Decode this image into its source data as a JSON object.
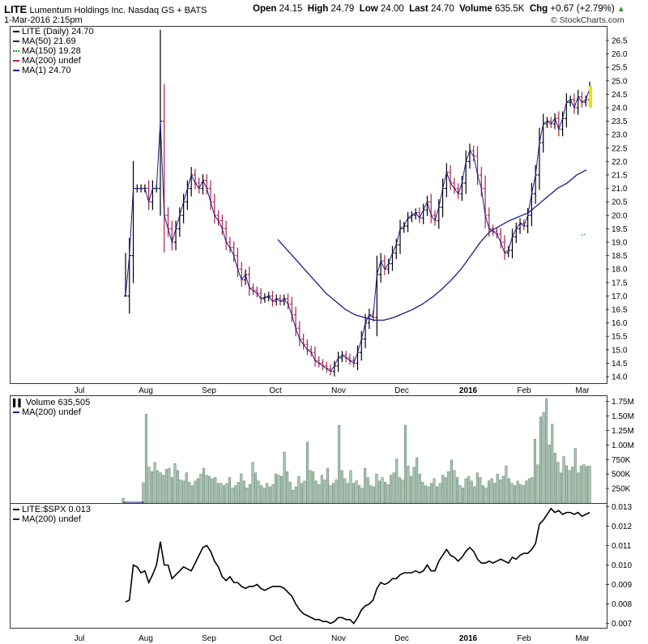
{
  "header": {
    "symbol": "LITE",
    "company": "Lumentum Holdings Inc.  Nasdaq GS + BATS",
    "datetime": "1-Mar-2016 2:15pm",
    "open_label": "Open",
    "open": "24.15",
    "high_label": "High",
    "high": "24.79",
    "low_label": "Low",
    "low": "24.00",
    "last_label": "Last",
    "last": "24.70",
    "volume_label": "Volume",
    "volume": "635.5K",
    "chg_label": "Chg",
    "chg": "+0.67 (+2.79%)",
    "chg_arrow": "▲",
    "brand": "© StockCharts.com"
  },
  "price_legend": [
    {
      "text": "LITE (Daily) 24.70",
      "icon": "candlestick-icon",
      "color": "#000000"
    },
    {
      "text": "MA(50) 21.69",
      "icon": "line-icon",
      "color": "#1a1a8c"
    },
    {
      "text": "MA(150) 19.28",
      "icon": "dotted-line-icon",
      "color": "#2a8a2a"
    },
    {
      "text": "MA(200) undef",
      "icon": "line-icon",
      "color": "#c0203a"
    },
    {
      "text": "MA(1) 24.70",
      "icon": "line-icon",
      "color": "#1a1a8c"
    }
  ],
  "volume_legend": [
    {
      "text": "Volume 635,505",
      "icon": "volume-bars-icon",
      "color": "#555555"
    },
    {
      "text": "MA(200) undef",
      "icon": "line-icon",
      "color": "#1a1a8c"
    }
  ],
  "ratio_legend": [
    {
      "text": "LITE:$SPX 0.013",
      "icon": "line-icon",
      "color": "#000000"
    },
    {
      "text": "MA(200) undef",
      "icon": "line-icon",
      "color": "#1a1a8c"
    }
  ],
  "colors": {
    "up": "#000000",
    "down": "#b0204a",
    "ma50": "#1a1a8c",
    "ma150": "#2a8a2a",
    "volume_fill": "#a9c4b4",
    "volume_stroke": "#5a7a66",
    "last_highlight": "#f0e000"
  },
  "chart_data": [
    {
      "type": "line",
      "title": "LITE (Daily)",
      "x_labels": [
        "Jul",
        "Aug",
        "Sep",
        "Oct",
        "Nov",
        "Dec",
        "2016",
        "Feb",
        "Mar"
      ],
      "y_ticks": [
        14.0,
        14.5,
        15.0,
        15.5,
        16.0,
        16.5,
        17.0,
        17.5,
        18.0,
        18.5,
        19.0,
        19.5,
        20.0,
        20.5,
        21.0,
        21.5,
        22.0,
        22.5,
        23.0,
        23.5,
        24.0,
        24.5,
        25.0,
        25.5,
        26.0,
        26.5
      ],
      "ylim": [
        13.85,
        26.95
      ],
      "series": [
        {
          "name": "LITE (Daily)",
          "values": [
            17.0,
            18.5,
            21.0,
            21.0,
            21.0,
            21.0,
            20.5,
            21.0,
            21.0,
            23.5,
            20.0,
            19.5,
            19.0,
            19.5,
            20.0,
            20.5,
            21.0,
            21.5,
            21.2,
            21.0,
            21.3,
            21.0,
            20.5,
            20.0,
            19.8,
            19.5,
            19.0,
            18.8,
            18.5,
            18.0,
            17.6,
            17.8,
            17.3,
            17.2,
            17.1,
            16.9,
            16.95,
            17.0,
            16.8,
            16.9,
            16.8,
            16.9,
            16.7,
            16.3,
            15.8,
            15.4,
            15.2,
            15.0,
            14.9,
            14.6,
            14.5,
            14.4,
            14.3,
            14.2,
            14.4,
            14.7,
            14.8,
            14.7,
            14.6,
            14.5,
            14.9,
            15.4,
            16.0,
            16.3,
            16.2,
            17.8,
            18.3,
            18.0,
            18.2,
            18.6,
            18.9,
            19.5,
            19.6,
            19.9,
            20.0,
            20.1,
            19.9,
            20.2,
            20.5,
            20.0,
            19.8,
            20.3,
            21.0,
            21.6,
            21.2,
            21.0,
            20.8,
            21.2,
            22.0,
            22.4,
            22.2,
            21.5,
            21.0,
            20.0,
            19.5,
            19.4,
            19.3,
            19.0,
            18.6,
            18.7,
            19.2,
            19.5,
            19.7,
            19.6,
            20.0,
            20.8,
            21.5,
            22.7,
            23.4,
            23.5,
            23.4,
            23.6,
            23.2,
            23.6,
            24.2,
            24.3,
            24.0,
            24.4,
            24.2,
            24.3,
            24.7
          ]
        },
        {
          "name": "MA(50)",
          "values": [
            19.1,
            18.7,
            18.3,
            17.9,
            17.5,
            17.1,
            16.8,
            16.5,
            16.3,
            16.2,
            16.1,
            16.1,
            16.2,
            16.35,
            16.5,
            16.7,
            16.95,
            17.25,
            17.6,
            18.0,
            18.5,
            19.0,
            19.4,
            19.6,
            19.8,
            19.95,
            20.1,
            20.4,
            20.7,
            21.0,
            21.2,
            21.5,
            21.69
          ]
        },
        {
          "name": "MA(150)",
          "values": [
            19.28
          ]
        }
      ]
    },
    {
      "type": "bar",
      "title": "Volume",
      "ylim": [
        0,
        1800000
      ],
      "y_ticks": [
        "250K",
        "500K",
        "750K",
        "1.00M",
        "1.25M",
        "1.50M",
        "1.75M"
      ],
      "values": [
        80000,
        0,
        0,
        0,
        0,
        0,
        0,
        350000,
        1530000,
        620000,
        540000,
        700000,
        560000,
        520000,
        480000,
        580000,
        600000,
        440000,
        680000,
        560000,
        400000,
        380000,
        520000,
        360000,
        300000,
        380000,
        420000,
        500000,
        600000,
        480000,
        460000,
        420000,
        440000,
        340000,
        340000,
        300000,
        340000,
        440000,
        260000,
        300000,
        360000,
        500000,
        380000,
        260000,
        320000,
        700000,
        520000,
        380000,
        300000,
        260000,
        340000,
        280000,
        320000,
        500000,
        480000,
        460000,
        880000,
        540000,
        360000,
        220000,
        280000,
        460000,
        340000,
        380000,
        1050000,
        560000,
        540000,
        380000,
        320000,
        480000,
        400000,
        600000,
        300000,
        340000,
        400000,
        1340000,
        560000,
        420000,
        340000,
        560000,
        340000,
        380000,
        300000,
        260000,
        600000,
        440000,
        300000,
        280000,
        500000,
        380000,
        440000,
        360000,
        320000,
        480000,
        520000,
        760000,
        440000,
        400000,
        1340000,
        640000,
        460000,
        620000,
        780000,
        500000,
        360000,
        300000,
        280000,
        340000,
        420000,
        280000,
        340000,
        480000,
        440000,
        540000,
        740000,
        560000,
        440000,
        300000,
        260000,
        420000,
        460000,
        380000,
        280000,
        520000,
        440000,
        300000,
        260000,
        380000,
        420000,
        340000,
        500000,
        400000,
        460000,
        640000,
        420000,
        340000,
        300000,
        380000,
        320000,
        300000,
        380000,
        420000,
        440000,
        1100000,
        660000,
        1480000,
        1560000,
        1800000,
        1000000,
        1360000,
        860000,
        700000,
        520000,
        800000,
        640000,
        560000,
        620000,
        940000,
        520000,
        640000,
        660000,
        630000,
        640000
      ]
    },
    {
      "type": "line",
      "title": "LITE:$SPX",
      "y_ticks": [
        "0.007",
        "0.008",
        "0.009",
        "0.010",
        "0.011",
        "0.012",
        "0.013"
      ],
      "ylim": [
        0.0069,
        0.0131
      ],
      "series": [
        {
          "name": "LITE:$SPX",
          "values": [
            0.0081,
            0.0082,
            0.01,
            0.0099,
            0.0096,
            0.0097,
            0.0091,
            0.0095,
            0.01,
            0.0112,
            0.01,
            0.01,
            0.0093,
            0.0095,
            0.0097,
            0.0099,
            0.0098,
            0.0097,
            0.0101,
            0.0105,
            0.0109,
            0.011,
            0.0107,
            0.0102,
            0.0099,
            0.0094,
            0.0092,
            0.0094,
            0.0091,
            0.0091,
            0.0089,
            0.0088,
            0.0089,
            0.0089,
            0.009,
            0.0088,
            0.0087,
            0.0088,
            0.0089,
            0.0089,
            0.0089,
            0.0088,
            0.0086,
            0.0084,
            0.008,
            0.0077,
            0.0075,
            0.0074,
            0.0073,
            0.0072,
            0.0072,
            0.0071,
            0.0071,
            0.007,
            0.0071,
            0.0073,
            0.0073,
            0.0072,
            0.0072,
            0.007,
            0.0073,
            0.0077,
            0.0079,
            0.008,
            0.0082,
            0.0088,
            0.0091,
            0.009,
            0.0091,
            0.0093,
            0.0093,
            0.0095,
            0.0096,
            0.0096,
            0.0096,
            0.0097,
            0.0096,
            0.0097,
            0.01,
            0.0097,
            0.0097,
            0.0102,
            0.0105,
            0.0108,
            0.0105,
            0.0104,
            0.0102,
            0.0104,
            0.0107,
            0.0109,
            0.0107,
            0.0103,
            0.0101,
            0.0101,
            0.0102,
            0.0101,
            0.0102,
            0.0103,
            0.0102,
            0.0101,
            0.0104,
            0.0103,
            0.0105,
            0.0106,
            0.0106,
            0.0108,
            0.0111,
            0.0121,
            0.0123,
            0.0126,
            0.0129,
            0.0127,
            0.0128,
            0.0126,
            0.0127,
            0.0127,
            0.0126,
            0.0127,
            0.0125,
            0.0126,
            0.0127
          ]
        }
      ]
    }
  ]
}
